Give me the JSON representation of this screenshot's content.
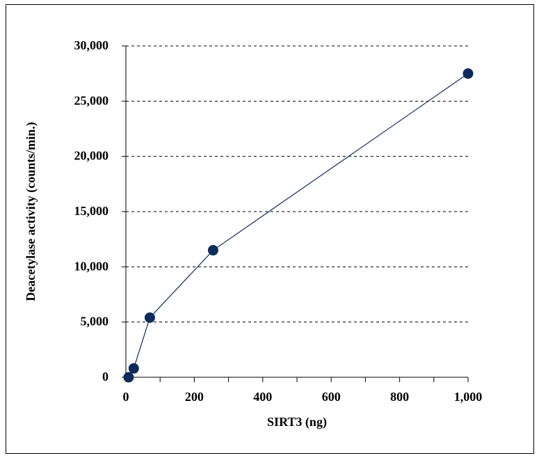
{
  "chart_data": {
    "type": "line",
    "title": "",
    "xlabel": "SIRT3 (ng)",
    "ylabel": "Deacetylase activity (counts/min.)",
    "xlim": [
      0,
      1000
    ],
    "ylim": [
      0,
      30000
    ],
    "x_ticks": [
      0,
      200,
      400,
      600,
      800,
      1000
    ],
    "x_tick_labels": [
      "0",
      "200",
      "400",
      "600",
      "800",
      "1,000"
    ],
    "y_ticks": [
      0,
      5000,
      10000,
      15000,
      20000,
      25000,
      30000
    ],
    "y_tick_labels": [
      "0",
      "5,000",
      "10,000",
      "15,000",
      "20,000",
      "25,000",
      "30,000"
    ],
    "grid": "horizontal dashed",
    "legend": "none",
    "series": [
      {
        "x": [
          8,
          23,
          70,
          255,
          1000
        ],
        "y": [
          0,
          800,
          5400,
          11500,
          27500
        ]
      }
    ],
    "colors": {
      "series": "#0d2c5b",
      "grid": "#000000",
      "axis": "#000000"
    }
  }
}
